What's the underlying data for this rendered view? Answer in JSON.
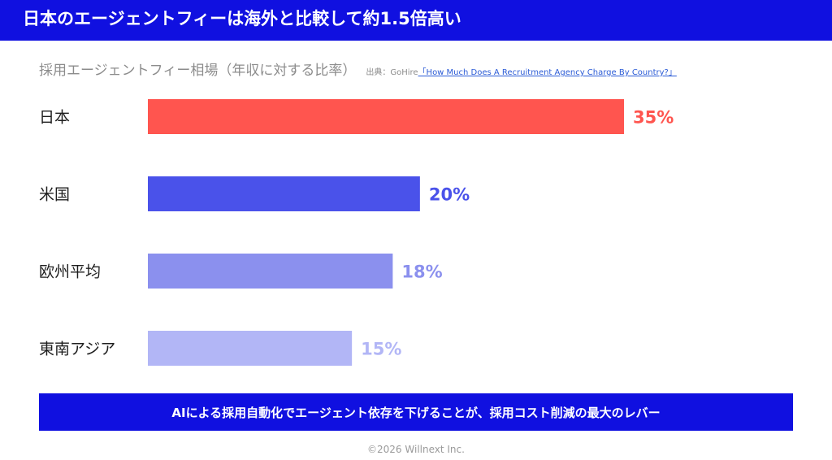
{
  "header": {
    "title": "日本のエージェントフィーは海外と比較して約1.5倍高い"
  },
  "source": {
    "prefix": "出典：GoHire",
    "link_text": "「How Much Does A Recruitment Agency Charge By Country?」"
  },
  "chart_data": {
    "type": "bar",
    "orientation": "horizontal",
    "title": "採用エージェントフィー相場（年収に対する比率）",
    "categories": [
      "日本",
      "米国",
      "欧州平均",
      "東南アジア"
    ],
    "values": [
      35,
      20,
      18,
      15
    ],
    "value_labels": [
      "35%",
      "20%",
      "18%",
      "15%"
    ],
    "unit": "%",
    "xlim": [
      0,
      35
    ],
    "bar_colors": [
      "#ff554f",
      "#4a52ea",
      "#8b90ee",
      "#b2b6f6"
    ],
    "grid": false,
    "legend": "none"
  },
  "banner": {
    "text": "AIによる採用自動化でエージェント依存を下げることが、採用コスト削減の最大のレバー"
  },
  "footer": {
    "copyright": "©2026 Willnext Inc."
  },
  "colors": {
    "brand_blue": "#1010e0",
    "muted_text": "#8c8c8c",
    "link": "#2b5bd6"
  }
}
